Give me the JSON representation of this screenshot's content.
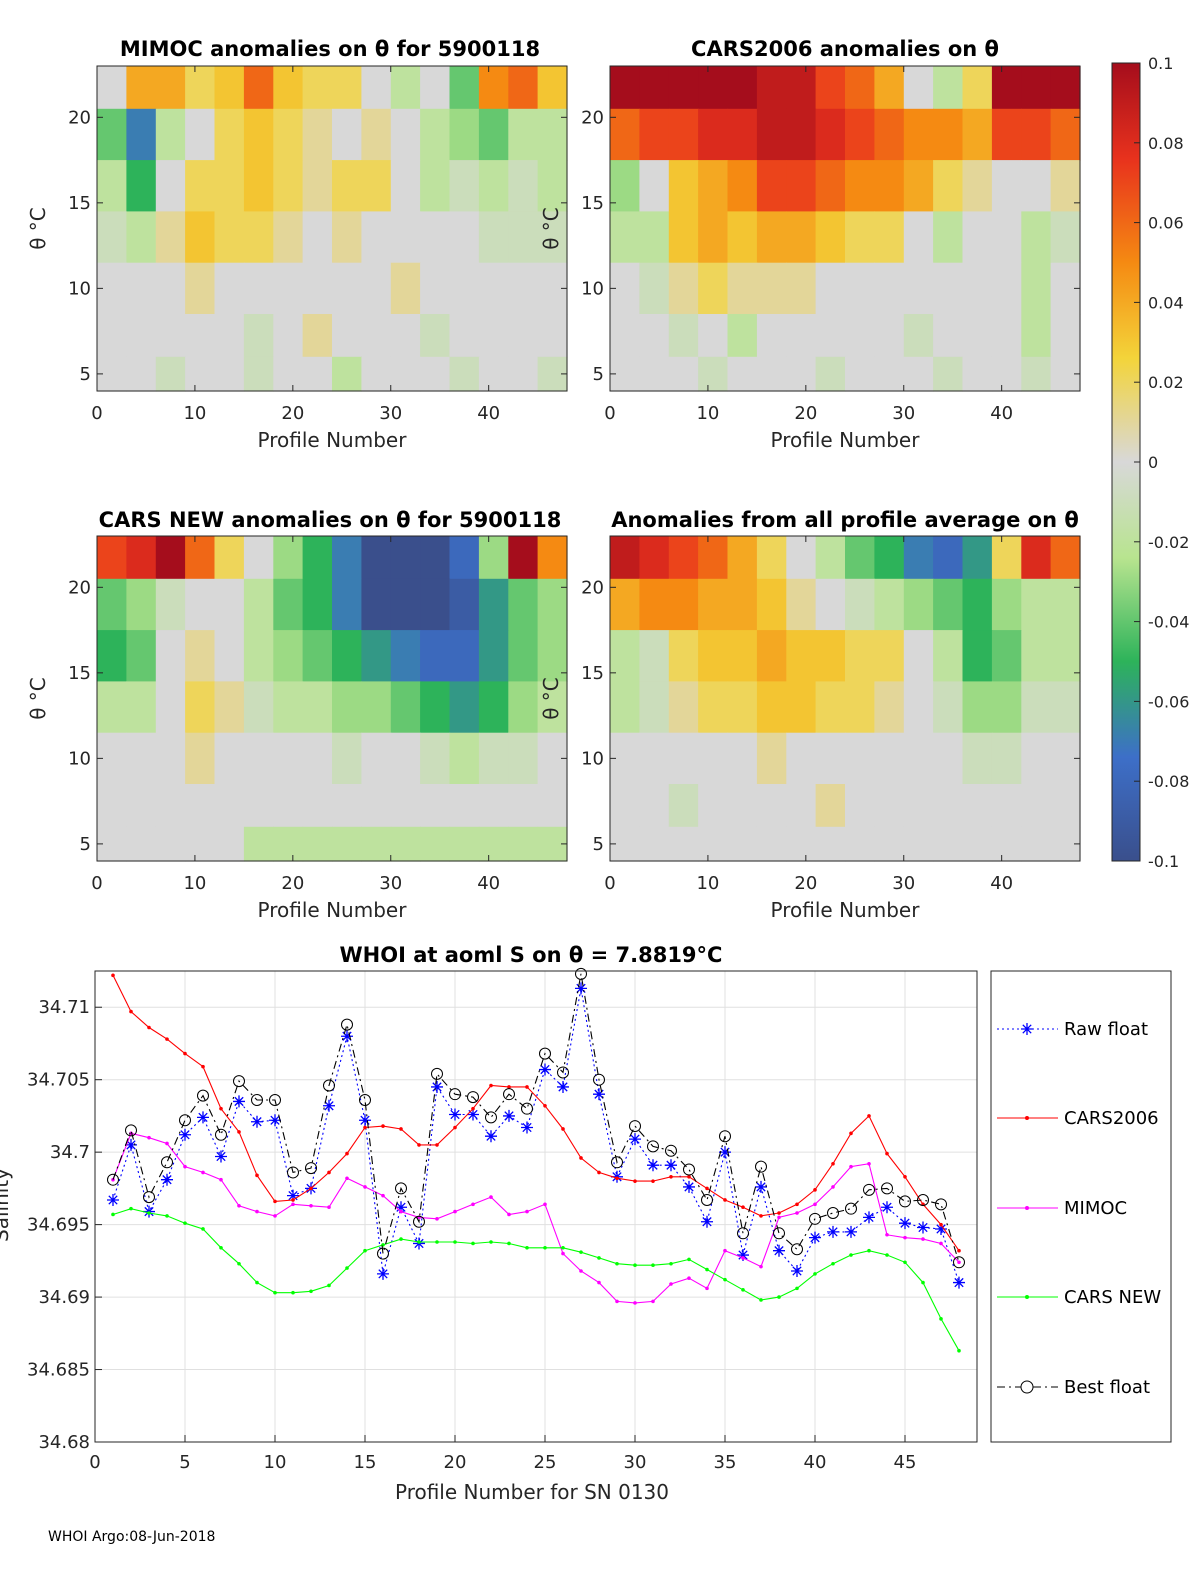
{
  "footer": "WHOI Argo:08-Jun-2018",
  "colorbar": {
    "ticks": [
      "0.1",
      "0.08",
      "0.06",
      "0.04",
      "0.02",
      "0",
      "-0.02",
      "-0.04",
      "-0.06",
      "-0.08",
      "-0.1"
    ],
    "range": [
      -0.1,
      0.1
    ]
  },
  "chart_data": [
    {
      "type": "heatmap",
      "title": "MIMOC anomalies on θ  for 5900118",
      "xlabel": "Profile Number",
      "ylabel": "θ °C",
      "xlim": [
        0,
        48
      ],
      "ylim": [
        4,
        23
      ],
      "xticks": [
        "0",
        "10",
        "20",
        "30",
        "40"
      ],
      "yticks": [
        "5",
        "10",
        "15",
        "20"
      ],
      "row_theta": [
        22,
        19,
        16,
        13,
        10,
        7,
        5
      ],
      "values": [
        [
          0.0,
          0.04,
          0.04,
          0.02,
          0.03,
          0.06,
          0.03,
          0.02,
          0.02,
          0.0,
          -0.02,
          0.0,
          -0.04,
          0.05,
          0.06,
          0.03
        ],
        [
          -0.04,
          -0.07,
          -0.02,
          0.0,
          0.02,
          0.03,
          0.02,
          0.01,
          0.0,
          0.01,
          0.0,
          -0.02,
          -0.03,
          -0.04,
          -0.02,
          -0.02
        ],
        [
          -0.02,
          -0.05,
          0.0,
          0.02,
          0.02,
          0.03,
          0.02,
          0.01,
          0.02,
          0.02,
          0.0,
          -0.02,
          -0.01,
          -0.02,
          -0.01,
          -0.02
        ],
        [
          -0.01,
          -0.02,
          0.01,
          0.03,
          0.02,
          0.02,
          0.01,
          0.0,
          0.01,
          0.0,
          0.0,
          0.0,
          0.0,
          -0.01,
          -0.01,
          -0.01
        ],
        [
          0.0,
          0.0,
          0.0,
          0.01,
          0.0,
          0.0,
          0.0,
          0.0,
          0.0,
          0.0,
          0.01,
          0.0,
          0.0,
          0.0,
          0.0,
          0.0
        ],
        [
          0.0,
          0.0,
          0.0,
          0.0,
          0.0,
          -0.01,
          0.0,
          0.01,
          0.0,
          0.0,
          0.0,
          -0.01,
          0.0,
          0.0,
          0.0,
          0.0
        ],
        [
          0.0,
          0.0,
          -0.01,
          0.0,
          0.0,
          -0.01,
          0.0,
          0.0,
          -0.02,
          0.0,
          0.0,
          0.0,
          -0.01,
          0.0,
          0.0,
          -0.01
        ]
      ]
    },
    {
      "type": "heatmap",
      "title": "CARS2006 anomalies on θ",
      "xlabel": "Profile Number",
      "ylabel": "θ °C",
      "xlim": [
        0,
        48
      ],
      "ylim": [
        4,
        23
      ],
      "xticks": [
        "0",
        "10",
        "20",
        "30",
        "40"
      ],
      "yticks": [
        "5",
        "10",
        "15",
        "20"
      ],
      "row_theta": [
        22,
        19,
        16,
        13,
        10,
        7,
        5
      ],
      "values": [
        [
          0.1,
          0.1,
          0.1,
          0.1,
          0.1,
          0.09,
          0.09,
          0.07,
          0.06,
          0.04,
          0.0,
          -0.02,
          0.02,
          0.1,
          0.1,
          0.1
        ],
        [
          0.06,
          0.07,
          0.07,
          0.08,
          0.08,
          0.09,
          0.09,
          0.08,
          0.07,
          0.06,
          0.05,
          0.05,
          0.04,
          0.07,
          0.07,
          0.06
        ],
        [
          -0.03,
          0.0,
          0.03,
          0.04,
          0.05,
          0.07,
          0.07,
          0.06,
          0.05,
          0.05,
          0.04,
          0.02,
          0.01,
          0.0,
          0.0,
          0.01
        ],
        [
          -0.02,
          -0.02,
          0.03,
          0.04,
          0.03,
          0.04,
          0.04,
          0.03,
          0.02,
          0.02,
          0.0,
          -0.02,
          0.0,
          0.0,
          -0.02,
          -0.01
        ],
        [
          0.0,
          -0.01,
          0.01,
          0.02,
          0.01,
          0.01,
          0.01,
          0.0,
          0.0,
          0.0,
          0.0,
          0.0,
          0.0,
          0.0,
          -0.02,
          0.0
        ],
        [
          0.0,
          0.0,
          -0.01,
          0.0,
          -0.02,
          0.0,
          0.0,
          0.0,
          0.0,
          0.0,
          -0.01,
          0.0,
          0.0,
          0.0,
          -0.02,
          0.0
        ],
        [
          0.0,
          0.0,
          0.0,
          -0.01,
          0.0,
          0.0,
          0.0,
          -0.01,
          0.0,
          0.0,
          0.0,
          -0.01,
          0.0,
          0.0,
          -0.01,
          0.0
        ]
      ]
    },
    {
      "type": "heatmap",
      "title": "CARS NEW anomalies on θ for 5900118",
      "xlabel": "Profile Number",
      "ylabel": "θ °C",
      "xlim": [
        0,
        48
      ],
      "ylim": [
        4,
        23
      ],
      "xticks": [
        "0",
        "10",
        "20",
        "30",
        "40"
      ],
      "yticks": [
        "5",
        "10",
        "15",
        "20"
      ],
      "row_theta": [
        22,
        19,
        16,
        13,
        10,
        7,
        5
      ],
      "values": [
        [
          0.07,
          0.08,
          0.1,
          0.06,
          0.02,
          0.0,
          -0.03,
          -0.05,
          -0.07,
          -0.1,
          -0.1,
          -0.1,
          -0.08,
          -0.03,
          0.1,
          0.05
        ],
        [
          -0.04,
          -0.03,
          -0.01,
          0.0,
          0.0,
          -0.02,
          -0.04,
          -0.05,
          -0.07,
          -0.1,
          -0.1,
          -0.1,
          -0.09,
          -0.06,
          -0.04,
          -0.03
        ],
        [
          -0.05,
          -0.04,
          0.0,
          0.01,
          0.0,
          -0.02,
          -0.03,
          -0.04,
          -0.05,
          -0.06,
          -0.07,
          -0.08,
          -0.08,
          -0.06,
          -0.04,
          -0.03
        ],
        [
          -0.02,
          -0.02,
          0.0,
          0.02,
          0.01,
          -0.01,
          -0.02,
          -0.02,
          -0.03,
          -0.03,
          -0.04,
          -0.05,
          -0.06,
          -0.05,
          -0.03,
          -0.02
        ],
        [
          0.0,
          0.0,
          0.0,
          0.01,
          0.0,
          0.0,
          0.0,
          0.0,
          -0.01,
          0.0,
          0.0,
          -0.01,
          -0.02,
          -0.01,
          -0.01,
          0.0
        ],
        [
          0.0,
          0.0,
          0.0,
          0.0,
          0.0,
          0.0,
          0.0,
          0.0,
          0.0,
          0.0,
          0.0,
          0.0,
          0.0,
          0.0,
          0.0,
          0.0
        ],
        [
          0.0,
          0.0,
          0.0,
          0.0,
          0.0,
          -0.02,
          -0.02,
          -0.02,
          -0.02,
          -0.02,
          -0.02,
          -0.02,
          -0.02,
          -0.02,
          -0.02,
          -0.02
        ]
      ]
    },
    {
      "type": "heatmap",
      "title": "Anomalies from all profile average on θ",
      "xlabel": "Profile Number",
      "ylabel": "θ °C",
      "xlim": [
        0,
        48
      ],
      "ylim": [
        4,
        23
      ],
      "xticks": [
        "0",
        "10",
        "20",
        "30",
        "40"
      ],
      "yticks": [
        "5",
        "10",
        "15",
        "20"
      ],
      "row_theta": [
        22,
        19,
        16,
        13,
        10,
        7,
        5
      ],
      "values": [
        [
          0.09,
          0.08,
          0.07,
          0.06,
          0.04,
          0.02,
          0.0,
          -0.02,
          -0.04,
          -0.05,
          -0.07,
          -0.08,
          -0.06,
          0.02,
          0.08,
          0.06
        ],
        [
          0.04,
          0.05,
          0.05,
          0.04,
          0.04,
          0.03,
          0.01,
          0.0,
          -0.01,
          -0.02,
          -0.03,
          -0.04,
          -0.05,
          -0.03,
          -0.02,
          -0.02
        ],
        [
          -0.02,
          -0.01,
          0.02,
          0.03,
          0.03,
          0.04,
          0.03,
          0.03,
          0.02,
          0.02,
          0.0,
          -0.02,
          -0.05,
          -0.04,
          -0.02,
          -0.02
        ],
        [
          -0.02,
          -0.01,
          0.01,
          0.02,
          0.02,
          0.03,
          0.03,
          0.02,
          0.02,
          0.01,
          0.0,
          -0.01,
          -0.03,
          -0.03,
          -0.01,
          -0.01
        ],
        [
          0.0,
          0.0,
          0.0,
          0.0,
          0.0,
          0.01,
          0.0,
          0.0,
          0.0,
          0.0,
          0.0,
          0.0,
          -0.01,
          -0.01,
          0.0,
          0.0
        ],
        [
          0.0,
          0.0,
          -0.01,
          0.0,
          0.0,
          0.0,
          0.0,
          0.01,
          0.0,
          0.0,
          0.0,
          0.0,
          0.0,
          0.0,
          0.0,
          0.0
        ],
        [
          0.0,
          0.0,
          0.0,
          0.0,
          0.0,
          0.0,
          0.0,
          0.0,
          0.0,
          0.0,
          0.0,
          0.0,
          0.0,
          0.0,
          0.0,
          0.0
        ]
      ]
    },
    {
      "type": "line",
      "title": "WHOI at aoml S on θ = 7.8819°C",
      "xlabel": "Profile Number for SN 0130",
      "ylabel": "Salinity",
      "xlim": [
        0,
        49
      ],
      "ylim": [
        34.68,
        34.7125
      ],
      "xticks": [
        "0",
        "5",
        "10",
        "15",
        "20",
        "25",
        "30",
        "35",
        "40",
        "45"
      ],
      "yticks": [
        "34.68",
        "34.685",
        "34.69",
        "34.695",
        "34.7",
        "34.705",
        "34.71"
      ],
      "x": [
        1,
        2,
        3,
        4,
        5,
        6,
        7,
        8,
        9,
        10,
        11,
        12,
        13,
        14,
        15,
        16,
        17,
        18,
        19,
        20,
        21,
        22,
        23,
        24,
        25,
        26,
        27,
        28,
        29,
        30,
        31,
        32,
        33,
        34,
        35,
        36,
        37,
        38,
        39,
        40,
        41,
        42,
        43,
        44,
        45,
        46,
        47,
        48
      ],
      "series": [
        {
          "name": "Raw float",
          "color": "#0000ff",
          "style": "dotted-star",
          "values": [
            34.6967,
            34.7005,
            34.6959,
            34.6981,
            34.7012,
            34.7024,
            34.6997,
            34.7035,
            34.7021,
            34.7022,
            34.697,
            34.6975,
            34.7032,
            34.708,
            34.7022,
            34.6916,
            34.6962,
            34.6937,
            34.7045,
            34.7026,
            34.7026,
            34.7011,
            34.7025,
            34.7017,
            34.7057,
            34.7045,
            34.7113,
            34.704,
            34.6983,
            34.7009,
            34.6991,
            34.6991,
            34.6976,
            34.6952,
            34.7,
            34.6929,
            34.6976,
            34.6932,
            34.6918,
            34.6941,
            34.6945,
            34.6945,
            34.6955,
            34.6962,
            34.6951,
            34.6948,
            34.6947,
            34.691
          ]
        },
        {
          "name": "CARS2006",
          "color": "#ff0000",
          "style": "line-dot",
          "values": [
            34.7122,
            34.7097,
            34.7086,
            34.7078,
            34.7068,
            34.7059,
            34.703,
            34.7014,
            34.6984,
            34.6966,
            34.6967,
            34.6975,
            34.6986,
            34.6999,
            34.7017,
            34.7018,
            34.7016,
            34.7005,
            34.7005,
            34.7017,
            34.703,
            34.7046,
            34.7045,
            34.7045,
            34.7032,
            34.7016,
            34.6996,
            34.6986,
            34.6982,
            34.698,
            34.698,
            34.6983,
            34.6983,
            34.6975,
            34.6967,
            34.6962,
            34.6956,
            34.6958,
            34.6964,
            34.6974,
            34.6992,
            34.7013,
            34.7025,
            34.6999,
            34.6983,
            34.6964,
            34.695,
            34.6932
          ]
        },
        {
          "name": "MIMOC",
          "color": "#ff00ff",
          "style": "line-dot",
          "values": [
            34.6981,
            34.7013,
            34.701,
            34.7006,
            34.699,
            34.6986,
            34.6981,
            34.6963,
            34.6959,
            34.6956,
            34.6964,
            34.6963,
            34.6962,
            34.6982,
            34.6976,
            34.697,
            34.6959,
            34.6955,
            34.6954,
            34.6959,
            34.6964,
            34.6969,
            34.6957,
            34.6959,
            34.6964,
            34.693,
            34.6918,
            34.691,
            34.6897,
            34.6896,
            34.6897,
            34.6909,
            34.6913,
            34.6906,
            34.6932,
            34.6927,
            34.6921,
            34.6955,
            34.6958,
            34.6964,
            34.6976,
            34.699,
            34.6992,
            34.6943,
            34.6941,
            34.694,
            34.6937,
            34.6924
          ]
        },
        {
          "name": "CARS NEW",
          "color": "#00ff00",
          "style": "line-dot",
          "values": [
            34.6957,
            34.6961,
            34.6958,
            34.6956,
            34.6951,
            34.6947,
            34.6934,
            34.6923,
            34.691,
            34.6903,
            34.6903,
            34.6904,
            34.6908,
            34.692,
            34.6932,
            34.6936,
            34.694,
            34.6938,
            34.6938,
            34.6938,
            34.6937,
            34.6938,
            34.6937,
            34.6934,
            34.6934,
            34.6934,
            34.6931,
            34.6927,
            34.6923,
            34.6922,
            34.6922,
            34.6923,
            34.6926,
            34.6919,
            34.6912,
            34.6905,
            34.6898,
            34.69,
            34.6906,
            34.6916,
            34.6923,
            34.6929,
            34.6932,
            34.6929,
            34.6924,
            34.691,
            34.6885,
            34.6863
          ]
        },
        {
          "name": "Best float",
          "color": "#000000",
          "style": "dashdot-circle",
          "values": [
            34.6981,
            34.7015,
            34.6969,
            34.6993,
            34.7022,
            34.7039,
            34.7012,
            34.7049,
            34.7036,
            34.7036,
            34.6986,
            34.6989,
            34.7046,
            34.7088,
            34.7036,
            34.693,
            34.6975,
            34.6952,
            34.7054,
            34.704,
            34.7038,
            34.7024,
            34.704,
            34.703,
            34.7068,
            34.7055,
            34.7123,
            34.705,
            34.6993,
            34.7018,
            34.7004,
            34.7001,
            34.6988,
            34.6967,
            34.7011,
            34.6944,
            34.699,
            34.6944,
            34.6933,
            34.6954,
            34.6958,
            34.6961,
            34.6974,
            34.6975,
            34.6966,
            34.6967,
            34.6964,
            34.6924
          ]
        }
      ]
    }
  ]
}
